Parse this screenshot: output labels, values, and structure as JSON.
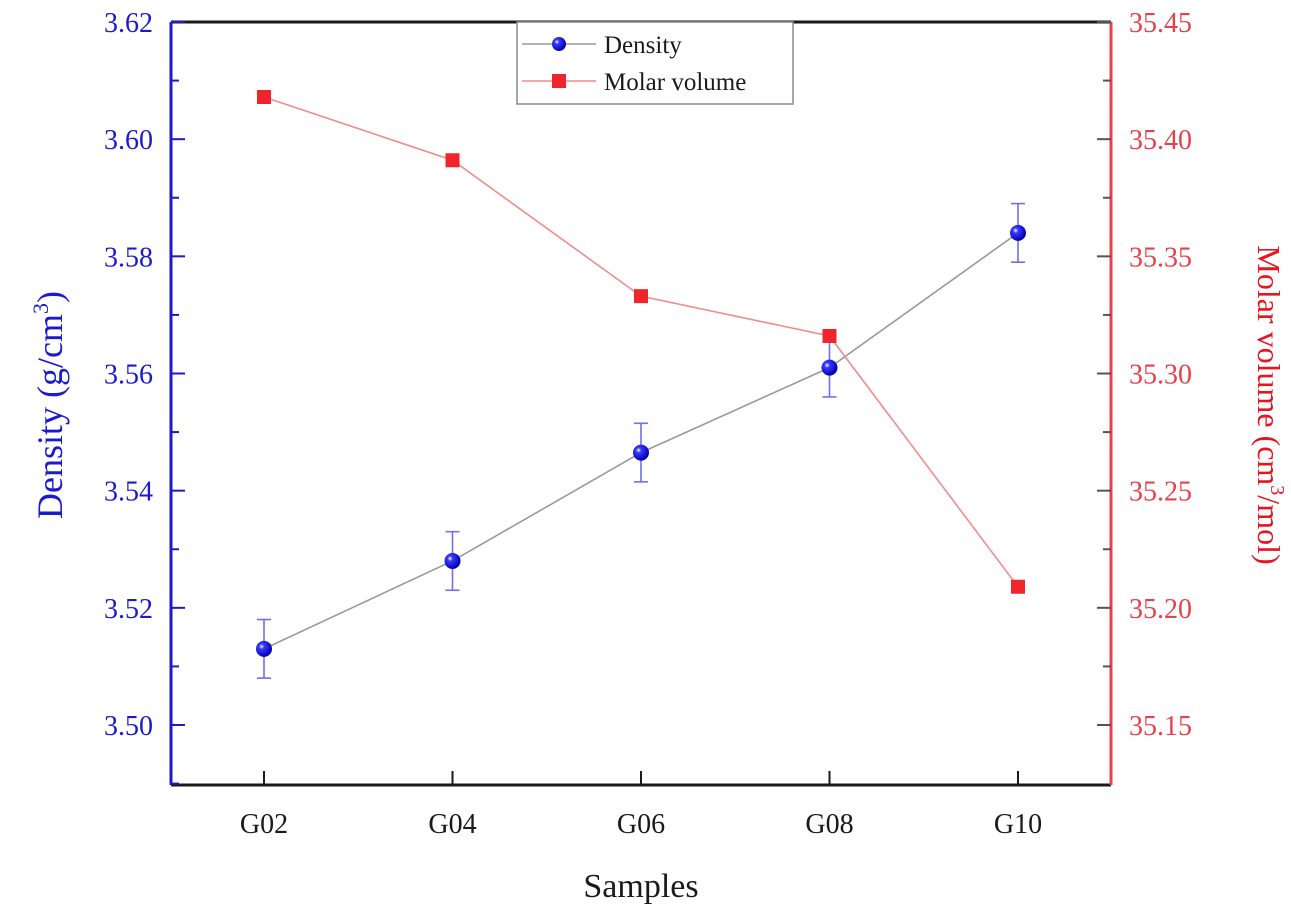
{
  "chart_data": {
    "type": "line",
    "title": "",
    "xlabel": "Samples",
    "categories": [
      "G02",
      "G04",
      "G06",
      "G08",
      "G10"
    ],
    "y_left": {
      "label_main": "Density (g/cm",
      "label_sup": "3",
      "label_end": ")",
      "range": [
        3.49,
        3.62
      ],
      "ticks": [
        "3.50",
        "3.52",
        "3.54",
        "3.56",
        "3.58",
        "3.60",
        "3.62"
      ],
      "color": "#1a1ad0"
    },
    "y_right": {
      "label_main": "Molar volume (cm",
      "label_sup": "3",
      "label_end": "/mol)",
      "range": [
        35.125,
        35.45
      ],
      "ticks": [
        "35.15",
        "35.20",
        "35.25",
        "35.30",
        "35.35",
        "35.40",
        "35.45"
      ],
      "color": "#e8404a"
    },
    "series": [
      {
        "name": "Density",
        "axis": "left",
        "marker": "circle",
        "marker_color": "#0a0ae0",
        "line_color": "#9a9a9a",
        "values": [
          3.513,
          3.528,
          3.5465,
          3.561,
          3.584
        ],
        "errors": [
          0.005,
          0.005,
          0.005,
          0.005,
          0.005
        ]
      },
      {
        "name": "Molar volume",
        "axis": "right",
        "marker": "square",
        "marker_color": "#f0242c",
        "line_color": "#f08c8c",
        "values": [
          35.418,
          35.391,
          35.333,
          35.316,
          35.209
        ]
      }
    ],
    "legend": {
      "position": "top-center",
      "entries": [
        "Density",
        "Molar volume"
      ]
    },
    "grid": false
  }
}
